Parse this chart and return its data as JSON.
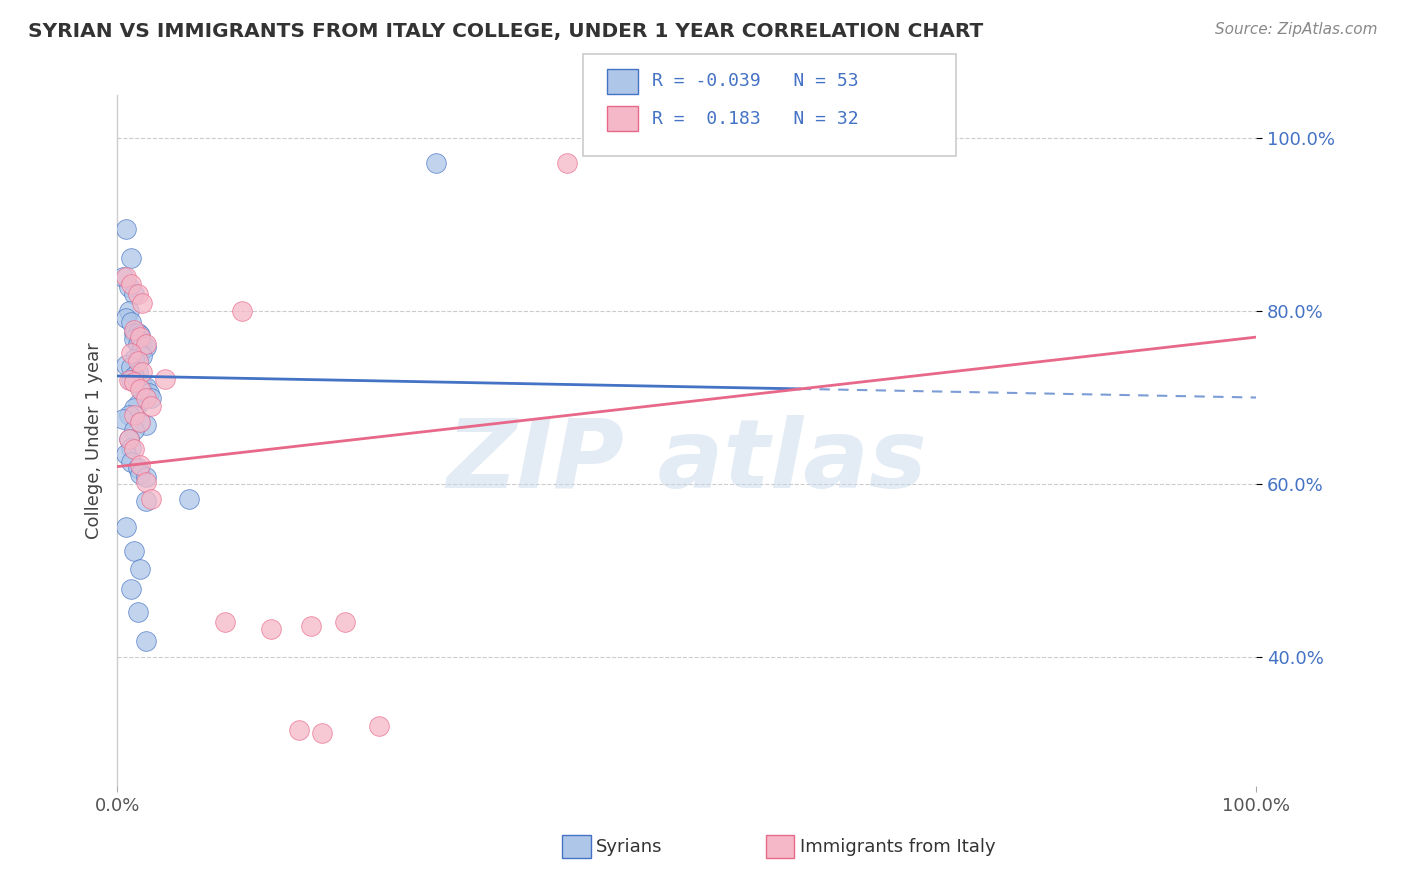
{
  "title": "SYRIAN VS IMMIGRANTS FROM ITALY COLLEGE, UNDER 1 YEAR CORRELATION CHART",
  "source": "Source: ZipAtlas.com",
  "ylabel": "College, Under 1 year",
  "legend_label1": "Syrians",
  "legend_label2": "Immigrants from Italy",
  "R1": "-0.039",
  "N1": "53",
  "R2": "0.183",
  "N2": "32",
  "color_blue": "#aec6e8",
  "color_pink": "#f5b8c8",
  "line_color_blue": "#4472c4",
  "line_color_pink": "#e8688a",
  "blue_x": [
    0.008,
    0.012,
    0.005,
    0.01,
    0.015,
    0.01,
    0.008,
    0.012,
    0.015,
    0.018,
    0.02,
    0.015,
    0.02,
    0.018,
    0.022,
    0.025,
    0.02,
    0.022,
    0.015,
    0.008,
    0.012,
    0.018,
    0.015,
    0.012,
    0.018,
    0.022,
    0.025,
    0.022,
    0.028,
    0.03,
    0.018,
    0.015,
    0.01,
    0.005,
    0.02,
    0.025,
    0.015,
    0.01,
    0.012,
    0.008,
    0.012,
    0.018,
    0.02,
    0.025,
    0.063,
    0.008,
    0.015,
    0.02,
    0.012,
    0.018,
    0.025,
    0.28,
    0.025
  ],
  "blue_y": [
    0.895,
    0.862,
    0.84,
    0.828,
    0.82,
    0.8,
    0.792,
    0.788,
    0.775,
    0.775,
    0.772,
    0.768,
    0.765,
    0.762,
    0.76,
    0.758,
    0.752,
    0.748,
    0.745,
    0.738,
    0.735,
    0.73,
    0.725,
    0.72,
    0.718,
    0.715,
    0.712,
    0.708,
    0.705,
    0.7,
    0.692,
    0.688,
    0.68,
    0.675,
    0.672,
    0.668,
    0.662,
    0.652,
    0.642,
    0.635,
    0.625,
    0.618,
    0.612,
    0.608,
    0.582,
    0.55,
    0.522,
    0.502,
    0.478,
    0.452,
    0.418,
    0.972,
    0.58
  ],
  "pink_x": [
    0.008,
    0.012,
    0.018,
    0.022,
    0.015,
    0.02,
    0.025,
    0.012,
    0.018,
    0.022,
    0.01,
    0.015,
    0.02,
    0.025,
    0.03,
    0.015,
    0.02,
    0.11,
    0.01,
    0.015,
    0.02,
    0.025,
    0.03,
    0.135,
    0.17,
    0.2,
    0.23,
    0.042,
    0.095,
    0.395,
    0.16,
    0.18
  ],
  "pink_y": [
    0.84,
    0.832,
    0.82,
    0.81,
    0.778,
    0.77,
    0.762,
    0.752,
    0.742,
    0.73,
    0.72,
    0.718,
    0.71,
    0.7,
    0.69,
    0.68,
    0.672,
    0.8,
    0.652,
    0.64,
    0.622,
    0.602,
    0.582,
    0.432,
    0.435,
    0.44,
    0.32,
    0.722,
    0.44,
    0.972,
    0.315,
    0.312
  ],
  "xlim": [
    0.0,
    1.0
  ],
  "ylim": [
    0.25,
    1.05
  ],
  "yticks": [
    0.4,
    0.6,
    0.8,
    1.0
  ],
  "ytick_labels": [
    "40.0%",
    "60.0%",
    "80.0%",
    "100.0%"
  ],
  "blue_line_x": [
    0.0,
    0.5,
    1.0
  ],
  "blue_line_y_start": 0.725,
  "blue_line_y_end": 0.7,
  "pink_line_y_start": 0.62,
  "pink_line_y_end": 0.77
}
